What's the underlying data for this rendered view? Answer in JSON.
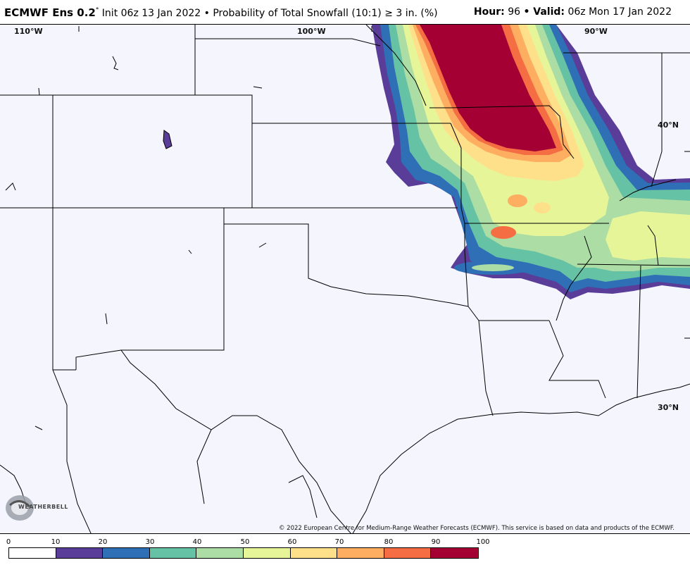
{
  "header": {
    "model": "ECMWF Ens 0.2",
    "degree_symbol": "°",
    "description": "Init 06z 13 Jan 2022 • Probability of Total Snowfall (10:1) ≥ 3 in. (%)",
    "hour_label": "Hour:",
    "hour_value": "96",
    "valid_label": "• Valid:",
    "valid_value": "06z Mon 17 Jan 2022"
  },
  "map": {
    "lon_labels": [
      "110°W",
      "100°W",
      "90°W"
    ],
    "lat_labels": [
      "40°N",
      "30°N"
    ],
    "copyright": "© 2022 European Centre for Medium-Range Weather Forecasts (ECMWF). This service is based on data and products of the ECMWF.",
    "logo_text": "WEATHERBELL"
  },
  "colorbar": {
    "ticks": [
      "0",
      "10",
      "20",
      "30",
      "40",
      "50",
      "60",
      "70",
      "80",
      "90",
      "100"
    ],
    "colors": [
      "#ffffff",
      "#5a3d99",
      "#2f6fb5",
      "#66c2a5",
      "#abdda4",
      "#e6f598",
      "#fee08b",
      "#fdae61",
      "#f46d43",
      "#a50034"
    ]
  }
}
